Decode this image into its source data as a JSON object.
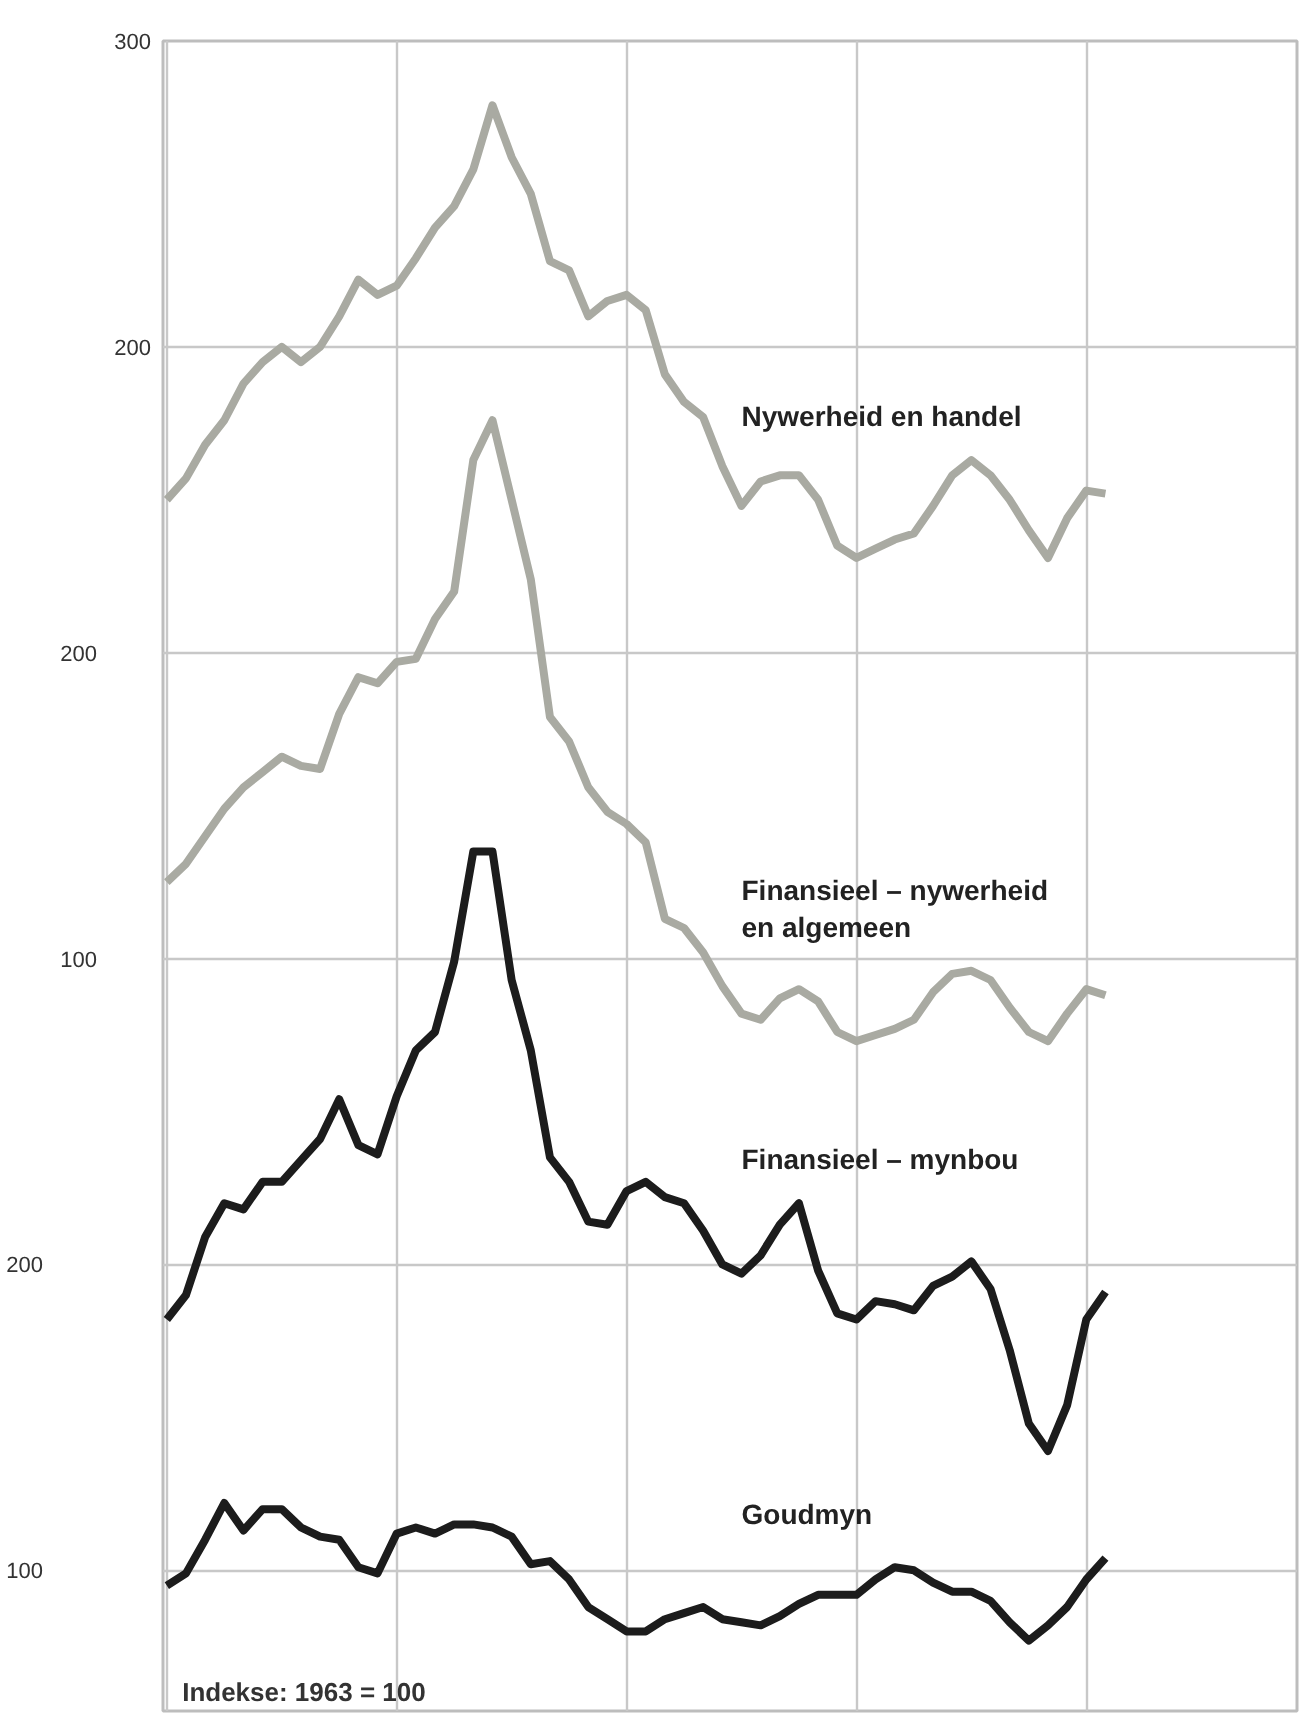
{
  "chart_data": {
    "type": "line",
    "annotations": [
      "Indekse: 1963 = 100"
    ],
    "categories": [
      null,
      null,
      null,
      null,
      null,
      null,
      null,
      null,
      null,
      null,
      null,
      null,
      null,
      null,
      null,
      null,
      null,
      null,
      null,
      null,
      null,
      null,
      null,
      null,
      null,
      null,
      null,
      null,
      null,
      null,
      null,
      null,
      null,
      null,
      null,
      null,
      null,
      null,
      null,
      null,
      null,
      null,
      null,
      null,
      null,
      null,
      null,
      null,
      null,
      null
    ],
    "series": [
      {
        "name": "Nywerheid en handel",
        "color": "#a9aaa2",
        "axis": "y",
        "values": [
          150,
          157,
          168,
          176,
          188,
          195,
          200,
          195,
          200,
          210,
          222,
          217,
          220,
          229,
          239,
          246,
          258,
          279,
          262,
          250,
          228,
          225,
          210,
          215,
          217,
          212,
          191,
          182,
          177,
          161,
          148,
          156,
          158,
          158,
          150,
          135,
          131,
          134,
          137,
          139,
          148,
          158,
          163,
          158,
          150,
          140,
          131,
          144,
          153,
          152
        ]
      },
      {
        "name": "Finansieel – nywerheid\nen algemeen",
        "color": "#a9aaa2",
        "axis": "y2",
        "values": [
          125,
          131,
          140,
          149,
          156,
          161,
          166,
          163,
          162,
          180,
          192,
          190,
          197,
          198,
          211,
          220,
          263,
          276,
          250,
          224,
          179,
          171,
          156,
          148,
          144,
          138,
          113,
          110,
          102,
          91,
          82,
          80,
          87,
          90,
          86,
          76,
          73,
          75,
          77,
          80,
          89,
          95,
          96,
          93,
          84,
          76,
          73,
          82,
          90,
          88
        ]
      },
      {
        "name": "Finansieel – mynbou",
        "color": "#1c1c1c",
        "axis": "y3",
        "values": [
          182,
          190,
          209,
          220,
          218,
          227,
          227,
          234,
          241,
          254,
          239,
          236,
          255,
          270,
          276,
          299,
          335,
          335,
          293,
          270,
          235,
          227,
          214,
          213,
          224,
          227,
          222,
          220,
          211,
          200,
          197,
          203,
          213,
          220,
          198,
          184,
          182,
          188,
          187,
          185,
          193,
          196,
          201,
          192,
          172,
          148,
          139,
          154,
          182,
          191
        ]
      },
      {
        "name": "Goudmyn",
        "color": "#1c1c1c",
        "axis": "y3",
        "values": [
          95,
          99,
          110,
          122,
          113,
          120,
          120,
          114,
          111,
          110,
          101,
          99,
          112,
          114,
          112,
          115,
          115,
          114,
          111,
          102,
          103,
          97,
          88,
          84,
          80,
          80,
          84,
          86,
          88,
          84,
          83,
          82,
          85,
          89,
          92,
          92,
          92,
          97,
          101,
          100,
          96,
          93,
          93,
          90,
          83,
          77,
          82,
          88,
          97,
          104
        ]
      }
    ],
    "ylim": [
      -246,
      300
    ],
    "yticks": [
      200,
      300
    ],
    "y2lim": [
      -146,
      400
    ],
    "y2ticks": [
      100,
      200
    ],
    "y3lim": [
      54,
      600
    ],
    "y3ticks": [
      100,
      200
    ],
    "grid": true
  }
}
